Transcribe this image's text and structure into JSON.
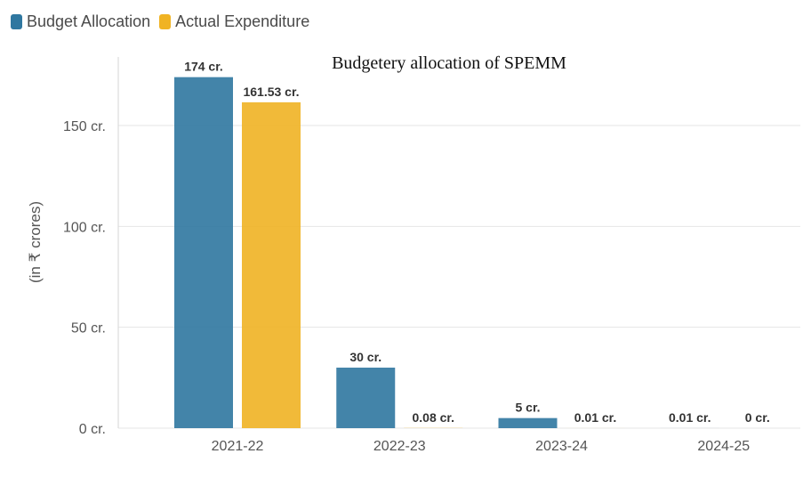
{
  "chart_data": {
    "type": "bar",
    "title": "Budgetery allocation of SPEMM",
    "xlabel": "",
    "ylabel": "(in ₹ crores)",
    "categories": [
      "2021-22",
      "2022-23",
      "2023-24",
      "2024-25"
    ],
    "series": [
      {
        "name": "Budget Allocation",
        "color": "#2f77a0",
        "values": [
          174,
          30,
          5,
          0.01
        ],
        "labels": [
          "174 cr.",
          "30 cr.",
          "5 cr.",
          "0.01 cr."
        ]
      },
      {
        "name": "Actual Expenditure",
        "color": "#f0b323",
        "values": [
          161.53,
          0.08,
          0.01,
          0
        ],
        "labels": [
          "161.53 cr.",
          "0.08 cr.",
          "0.01 cr.",
          "0 cr."
        ]
      }
    ],
    "yticks": [
      {
        "value": 0,
        "label": "0 cr."
      },
      {
        "value": 50,
        "label": "50 cr."
      },
      {
        "value": 100,
        "label": "100 cr."
      },
      {
        "value": 150,
        "label": "150 cr."
      }
    ],
    "ylim": [
      0,
      184
    ],
    "grid": true,
    "legend_position": "top-left"
  }
}
